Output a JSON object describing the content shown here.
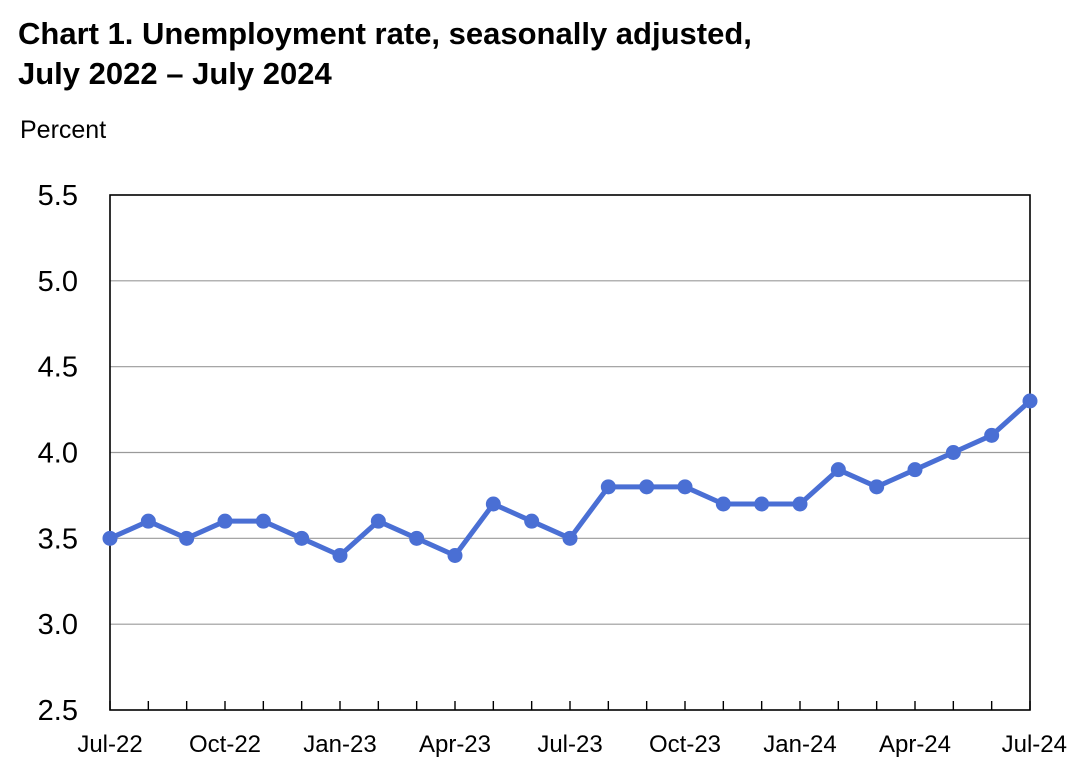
{
  "chart_data": {
    "type": "line",
    "title": "Chart 1. Unemployment rate, seasonally adjusted,",
    "subtitle": "July 2022 – July 2024",
    "ylabel": "Percent",
    "xlabel": "",
    "ylim": [
      2.5,
      5.5
    ],
    "yticks": [
      "5.5",
      "5.0",
      "4.5",
      "4.0",
      "3.5",
      "3.0",
      "2.5"
    ],
    "ytick_values": [
      5.5,
      5.0,
      4.5,
      4.0,
      3.5,
      3.0,
      2.5
    ],
    "grid": true,
    "xtick_labels": [
      "Jul-22",
      "Oct-22",
      "Jan-23",
      "Apr-23",
      "Jul-23",
      "Oct-23",
      "Jan-24",
      "Apr-24",
      "Jul-24"
    ],
    "xtick_every": 3,
    "series": [
      {
        "color": "#4a6fd4",
        "x": [
          "Jul-22",
          "Aug-22",
          "Sep-22",
          "Oct-22",
          "Nov-22",
          "Dec-22",
          "Jan-23",
          "Feb-23",
          "Mar-23",
          "Apr-23",
          "May-23",
          "Jun-23",
          "Jul-23",
          "Aug-23",
          "Sep-23",
          "Oct-23",
          "Nov-23",
          "Dec-23",
          "Jan-24",
          "Feb-24",
          "Mar-24",
          "Apr-24",
          "May-24",
          "Jun-24",
          "Jul-24"
        ],
        "values": [
          3.5,
          3.6,
          3.5,
          3.6,
          3.6,
          3.5,
          3.4,
          3.6,
          3.5,
          3.4,
          3.7,
          3.6,
          3.5,
          3.8,
          3.8,
          3.8,
          3.7,
          3.7,
          3.7,
          3.9,
          3.8,
          3.9,
          4.0,
          4.1,
          4.3
        ]
      }
    ]
  }
}
